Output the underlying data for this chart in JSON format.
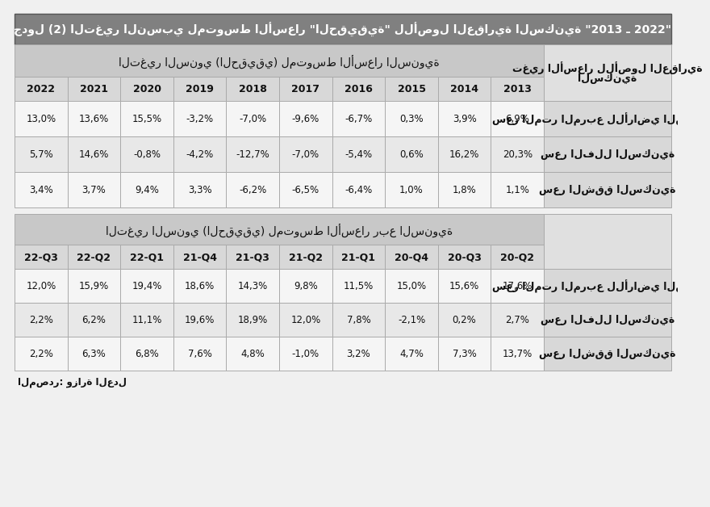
{
  "title": "جدول (2) التغير النسبي لمتوسط الأسعار \"الحقيقية\" للأصول العقارية السكنية \"2013 ـ 2022\"",
  "section1_header": "التغير السنوي (الحقيقي) لمتوسط الأسعار السنوية",
  "section2_header": "التغير السنوي (الحقيقي) لمتوسط الأسعار ربع السنوية",
  "right_col_header_line1": "تغير الأسعار للأصول العقارية",
  "right_col_header_line2": "السكنية",
  "source": "المصدر: وزارة العدل",
  "section1_years": [
    "2022",
    "2021",
    "2020",
    "2019",
    "2018",
    "2017",
    "2016",
    "2015",
    "2014",
    "2013"
  ],
  "section2_quarters": [
    "22-Q3",
    "22-Q2",
    "22-Q1",
    "21-Q4",
    "21-Q3",
    "21-Q2",
    "21-Q1",
    "20-Q4",
    "20-Q3",
    "20-Q2"
  ],
  "section1_rows": [
    {
      "label": "سعر المتر المربع للأراضي السكنية",
      "values": [
        "13,0%",
        "13,6%",
        "15,5%",
        "-3,2%",
        "-7,0%",
        "-9,6%",
        "-6,7%",
        "0,3%",
        "3,9%",
        "6,9%"
      ]
    },
    {
      "label": "سعر الفلل السكنية",
      "values": [
        "5,7%",
        "14,6%",
        "-0,8%",
        "-4,2%",
        "-12,7%",
        "-7,0%",
        "-5,4%",
        "0,6%",
        "16,2%",
        "20,3%"
      ]
    },
    {
      "label": "سعر الشقق السكنية",
      "values": [
        "3,4%",
        "3,7%",
        "9,4%",
        "3,3%",
        "-6,2%",
        "-6,5%",
        "-6,4%",
        "1,0%",
        "1,8%",
        "1,1%"
      ]
    }
  ],
  "section2_rows": [
    {
      "label": "سعر المتر المربع للأراضي السكنية",
      "values": [
        "12,0%",
        "15,9%",
        "19,4%",
        "18,6%",
        "14,3%",
        "9,8%",
        "11,5%",
        "15,0%",
        "15,6%",
        "17,6%"
      ]
    },
    {
      "label": "سعر الفلل السكنية",
      "values": [
        "2,2%",
        "6,2%",
        "11,1%",
        "19,6%",
        "18,9%",
        "12,0%",
        "7,8%",
        "-2,1%",
        "0,2%",
        "2,7%"
      ]
    },
    {
      "label": "سعر الشقق السكنية",
      "values": [
        "2,2%",
        "6,3%",
        "6,8%",
        "7,6%",
        "4,8%",
        "-1,0%",
        "3,2%",
        "4,7%",
        "7,3%",
        "13,7%"
      ]
    }
  ],
  "col_bg_title": "#808080",
  "col_bg_section_header": "#c8c8c8",
  "col_bg_year_header": "#d8d8d8",
  "col_bg_right_header": "#e0e0e0",
  "col_bg_data_white": "#f5f5f5",
  "col_bg_data_gray": "#e8e8e8",
  "col_bg_right_data": "#d8d8d8",
  "col_border": "#aaaaaa",
  "col_text": "#111111",
  "col_title_text": "#ffffff",
  "font_size_title": 10,
  "font_size_section": 10,
  "font_size_year": 9,
  "font_size_data": 8.5,
  "font_size_label": 9,
  "font_size_source": 8.5
}
